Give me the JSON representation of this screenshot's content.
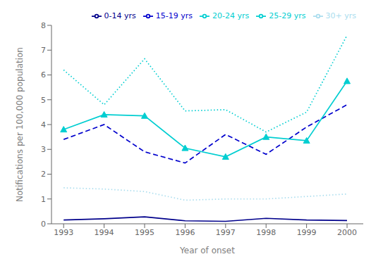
{
  "chart_data": {
    "type": "line",
    "xlabel": "Year of onset",
    "ylabel": "Notifications per 100,000 population",
    "x": [
      1993,
      1994,
      1995,
      1996,
      1997,
      1998,
      1999,
      2000
    ],
    "series": [
      {
        "name": "0-14 yrs",
        "color": "#00008B",
        "line_style": "solid",
        "values": [
          0.15,
          0.2,
          0.28,
          0.12,
          0.1,
          0.22,
          0.15,
          0.13
        ]
      },
      {
        "name": "15-19 yrs",
        "color": "#0000CD",
        "line_style": "dashed",
        "values": [
          3.4,
          4.0,
          2.9,
          2.45,
          3.6,
          2.8,
          3.9,
          4.8
        ]
      },
      {
        "name": "20-24 yrs",
        "color": "#00CED1",
        "line_style": "dotted",
        "values": [
          6.2,
          4.8,
          6.65,
          4.55,
          4.6,
          3.7,
          4.5,
          7.6
        ]
      },
      {
        "name": "25-29 yrs",
        "color": "#00CED1",
        "line_style": "solid",
        "marker": "triangle",
        "values": [
          3.8,
          4.4,
          4.35,
          3.05,
          2.7,
          3.5,
          3.35,
          5.75
        ]
      },
      {
        "name": "30+ yrs",
        "color": "#AADDEE",
        "line_style": "dotted",
        "values": [
          1.45,
          1.4,
          1.3,
          0.95,
          1.0,
          1.0,
          1.1,
          1.2
        ]
      }
    ],
    "xlim": [
      1992.7,
      2000.4
    ],
    "xticks": [
      1993,
      1994,
      1995,
      1996,
      1997,
      1998,
      1999,
      2000
    ],
    "ylim": [
      0,
      8
    ],
    "yticks": [
      0,
      1,
      2,
      3,
      4,
      5,
      6,
      7,
      8
    ],
    "grid": false,
    "legend": "upper right"
  }
}
